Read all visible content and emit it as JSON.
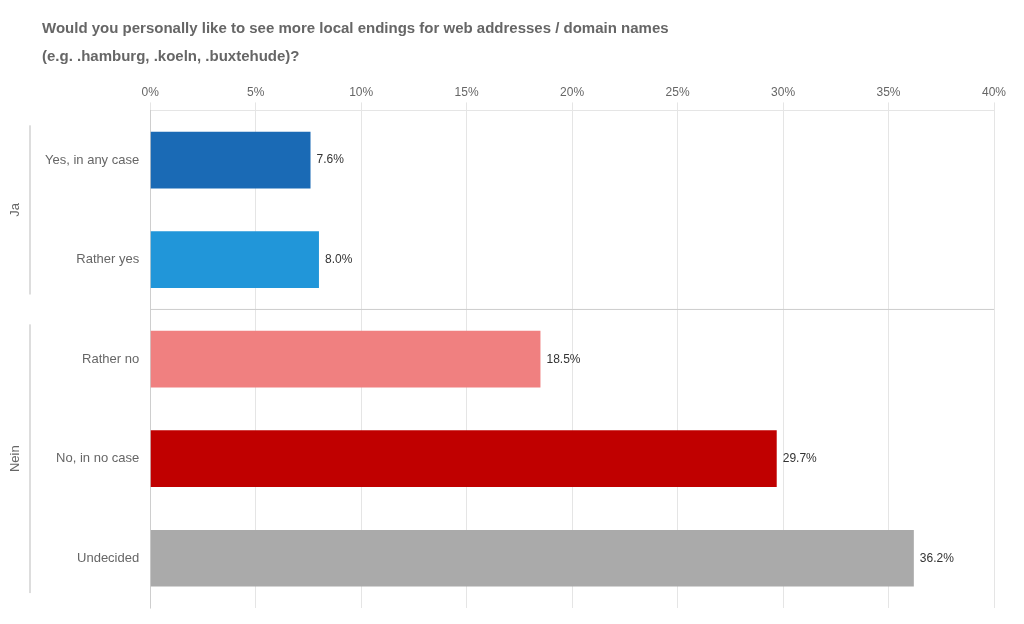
{
  "chart_data": {
    "type": "bar",
    "orientation": "horizontal",
    "title": "Would you personally like to see more local endings for web addresses / domain names",
    "subtitle": "(e.g. .hamburg, .koeln, .buxtehude)?",
    "categories": [
      "Yes, in any case",
      "Rather yes",
      "Rather no",
      "No, in no case",
      "Undecided"
    ],
    "values": [
      7.6,
      8.0,
      18.5,
      29.7,
      36.2
    ],
    "value_labels": [
      "7.6%",
      "8.0%",
      "18.5%",
      "29.7%",
      "36.2%"
    ],
    "data_labels": true,
    "colors": [
      "#1a6ab5",
      "#2196d9",
      "#f08080",
      "#c00000",
      "#aaaaaa"
    ],
    "xlim": [
      0,
      40
    ],
    "xticks": [
      {
        "value": 0,
        "label": "0%"
      },
      {
        "value": 5,
        "label": "5%"
      },
      {
        "value": 10,
        "label": "10%"
      },
      {
        "value": 15,
        "label": "15%"
      },
      {
        "value": 20,
        "label": "20%"
      },
      {
        "value": 25,
        "label": "25%"
      },
      {
        "value": 30,
        "label": "30%"
      },
      {
        "value": 35,
        "label": "35%"
      },
      {
        "value": 40,
        "label": "40%"
      }
    ],
    "grid": true,
    "annotations": [
      {
        "text": "Ja",
        "categories": [
          "Yes, in any case",
          "Rather yes"
        ]
      },
      {
        "text": "Nein",
        "categories": [
          "Rather no",
          "No, in no case",
          "Undecided"
        ]
      }
    ]
  }
}
